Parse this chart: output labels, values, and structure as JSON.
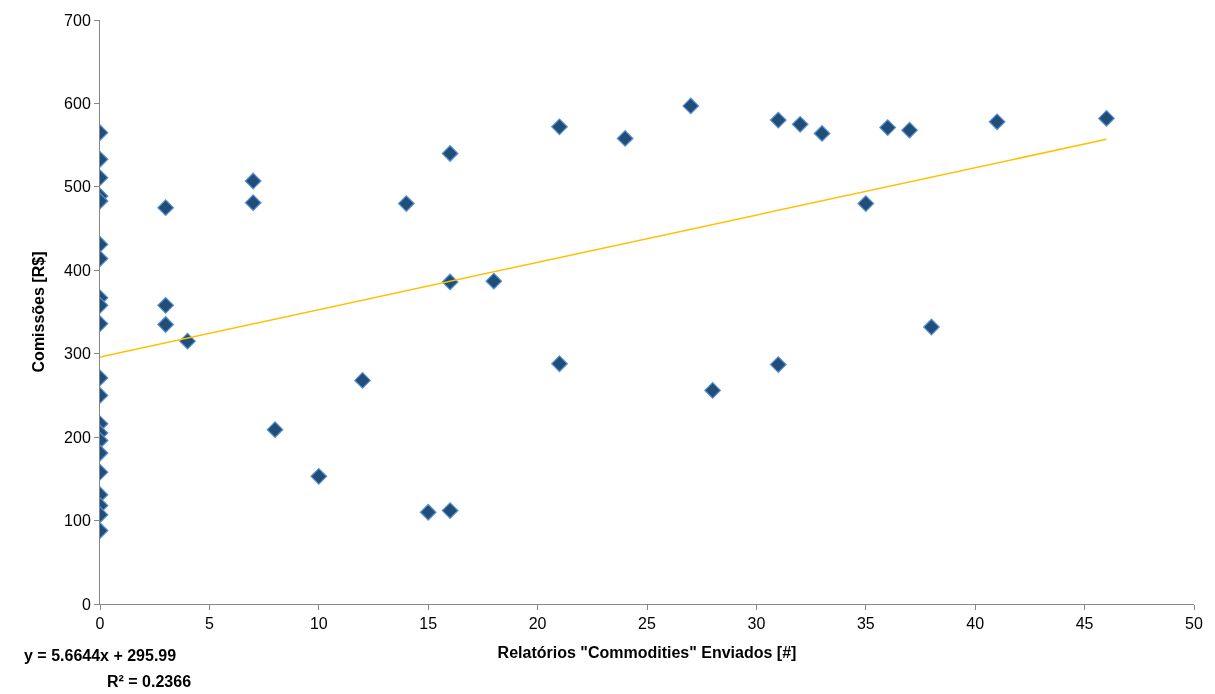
{
  "chart_data": {
    "type": "scatter",
    "xlabel": "Relatórios \"Commodities\" Enviados [#]",
    "ylabel": "Comissões [R$]",
    "xlim": [
      0,
      50
    ],
    "xticks": [
      0,
      5,
      10,
      15,
      20,
      25,
      30,
      35,
      40,
      45,
      50
    ],
    "ylim": [
      0,
      700
    ],
    "yticks": [
      0,
      100,
      200,
      300,
      400,
      500,
      600,
      700
    ],
    "marker": "diamond",
    "series": [
      {
        "color": "#1f4e79",
        "x": [
          0,
          0,
          0,
          0,
          0,
          0,
          0,
          0,
          0,
          0,
          0,
          0,
          0,
          0,
          0,
          0,
          0,
          0,
          0,
          0,
          0,
          3,
          3,
          3,
          4,
          7,
          7,
          8,
          10,
          12,
          14,
          15,
          16,
          16,
          16,
          18,
          21,
          21,
          24,
          27,
          28,
          31,
          31,
          32,
          33,
          35,
          36,
          37,
          38,
          41,
          46
        ],
        "values": [
          565,
          533,
          511,
          489,
          483,
          431,
          414,
          367,
          358,
          336,
          271,
          250,
          216,
          205,
          196,
          181,
          158,
          131,
          118,
          107,
          88,
          475,
          358,
          335,
          315,
          507,
          481,
          209,
          153,
          268,
          480,
          110,
          540,
          386,
          112,
          387,
          572,
          288,
          558,
          597,
          256,
          580,
          287,
          575,
          564,
          480,
          571,
          568,
          332,
          578,
          582
        ]
      },
      {
        "type": "line",
        "color": "#ffc000",
        "marker": "none",
        "line_style": "solid",
        "x": [
          0,
          46
        ],
        "values": [
          296,
          557
        ]
      }
    ],
    "annotations": [
      "y = 5.6644x + 295.99",
      "R² = 0.2366"
    ]
  }
}
